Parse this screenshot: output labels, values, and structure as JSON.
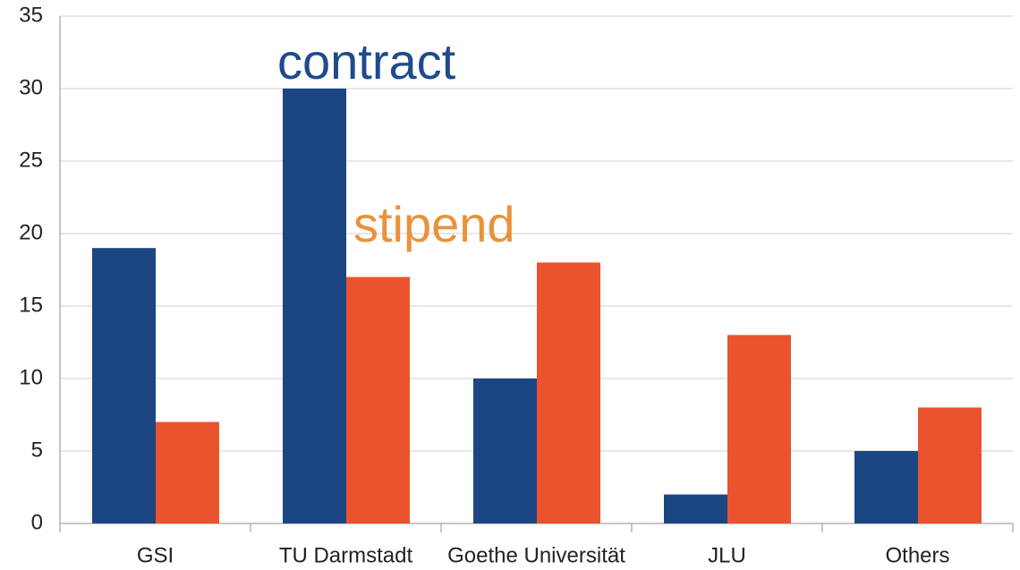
{
  "chart_data": {
    "type": "bar",
    "categories": [
      "GSI",
      "TU Darmstadt",
      "Goethe Universität",
      "JLU",
      "Others"
    ],
    "series": [
      {
        "name": "contract",
        "color": "#1b4682",
        "label_color": "#1f4a8c",
        "values": [
          19,
          30,
          10,
          2,
          5
        ]
      },
      {
        "name": "stipend",
        "color": "#ea532d",
        "label_color": "#e8923a",
        "values": [
          7,
          17,
          18,
          13,
          8
        ]
      }
    ],
    "ylim": [
      0,
      35
    ],
    "yticks": [
      0,
      5,
      10,
      15,
      20,
      25,
      30,
      35
    ],
    "grid": true
  }
}
